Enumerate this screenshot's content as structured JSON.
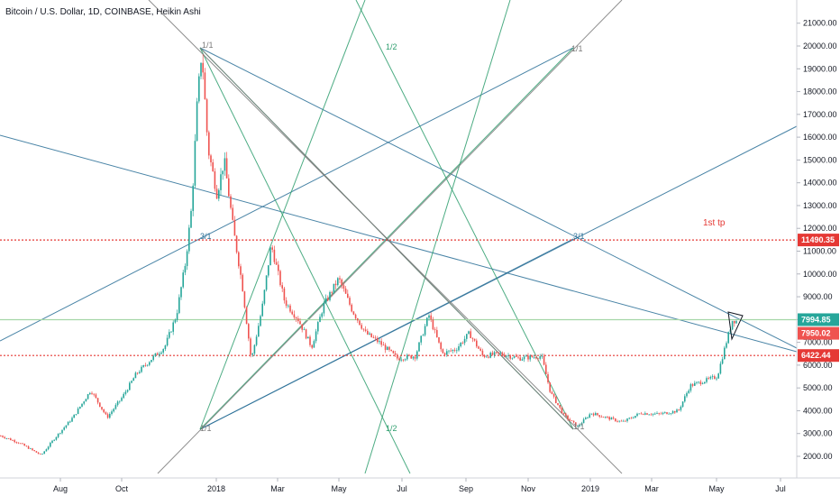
{
  "chart_data": {
    "type": "candlestick",
    "title": "Bitcoin / U.S. Dollar, 1D, COINBASE, Heikin Ashi",
    "x_ticks": [
      "Aug",
      "Oct",
      "2018",
      "Mar",
      "May",
      "Jul",
      "Sep",
      "Nov",
      "2019",
      "Mar",
      "May",
      "Jul"
    ],
    "y_ticks": [
      "21000.00",
      "20000.00",
      "19000.00",
      "18000.00",
      "17000.00",
      "16000.00",
      "15000.00",
      "14000.00",
      "13000.00",
      "12000.00",
      "11000.00",
      "10000.00",
      "9000.00",
      "8000.00",
      "7000.00",
      "6000.00",
      "5000.00",
      "4000.00",
      "3000.00",
      "2000.00"
    ],
    "ylim": [
      1500,
      21500
    ],
    "price_tags": [
      {
        "label": "11490.35",
        "value": 11490.35,
        "color": "#e53935"
      },
      {
        "label": "7994.85",
        "value": 7994.85,
        "color": "#26a69a"
      },
      {
        "label": "7950.02",
        "value": 7950.02,
        "color": "#ef5350"
      },
      {
        "label": "6422.44",
        "value": 6422.44,
        "color": "#e53935"
      }
    ],
    "horizontal_lines": [
      {
        "value": 11490.35,
        "style": "dotted",
        "color": "#e53935"
      },
      {
        "value": 6422.44,
        "style": "dotted",
        "color": "#e53935"
      },
      {
        "value": 7994.85,
        "style": "solid",
        "color": "#a5d6a7"
      }
    ],
    "annotations": [
      "1st tp"
    ],
    "gann_labels": [
      {
        "text": "1/1",
        "color": "gray"
      },
      {
        "text": "1/2",
        "color": "green"
      },
      {
        "text": "1/1",
        "color": "gray"
      },
      {
        "text": "3/1",
        "color": "blue"
      },
      {
        "text": "3/1",
        "color": "blue"
      },
      {
        "text": "1/1",
        "color": "gray"
      },
      {
        "text": "1/2",
        "color": "green"
      },
      {
        "text": "1/1",
        "color": "gray"
      }
    ],
    "colors": {
      "up": "#26a69a",
      "down": "#ef5350",
      "gann_blue": "#2a6f97",
      "gann_green": "#2e9e6e",
      "gann_gray": "#7b7b7b"
    },
    "path_points": [
      [
        0,
        2900
      ],
      [
        20,
        2600
      ],
      [
        45,
        2050
      ],
      [
        60,
        2800
      ],
      [
        80,
        3700
      ],
      [
        100,
        4900
      ],
      [
        118,
        3700
      ],
      [
        135,
        4600
      ],
      [
        150,
        5600
      ],
      [
        168,
        6300
      ],
      [
        182,
        6800
      ],
      [
        195,
        8200
      ],
      [
        205,
        10500
      ],
      [
        212,
        13000
      ],
      [
        218,
        17500
      ],
      [
        223,
        19800
      ],
      [
        230,
        15500
      ],
      [
        240,
        13500
      ],
      [
        248,
        15000
      ],
      [
        258,
        12000
      ],
      [
        268,
        9500
      ],
      [
        278,
        6200
      ],
      [
        290,
        8500
      ],
      [
        300,
        11300
      ],
      [
        315,
        8800
      ],
      [
        330,
        8000
      ],
      [
        345,
        6800
      ],
      [
        358,
        8600
      ],
      [
        375,
        9800
      ],
      [
        390,
        8400
      ],
      [
        405,
        7400
      ],
      [
        420,
        7000
      ],
      [
        440,
        6300
      ],
      [
        460,
        6400
      ],
      [
        475,
        8200
      ],
      [
        490,
        6500
      ],
      [
        505,
        6700
      ],
      [
        520,
        7400
      ],
      [
        535,
        6400
      ],
      [
        555,
        6500
      ],
      [
        575,
        6300
      ],
      [
        600,
        6400
      ],
      [
        610,
        4800
      ],
      [
        625,
        3800
      ],
      [
        640,
        3300
      ],
      [
        655,
        3900
      ],
      [
        672,
        3700
      ],
      [
        690,
        3500
      ],
      [
        710,
        3900
      ],
      [
        730,
        3850
      ],
      [
        752,
        4000
      ],
      [
        765,
        5100
      ],
      [
        780,
        5300
      ],
      [
        795,
        5500
      ],
      [
        805,
        7000
      ],
      [
        812,
        8000
      ],
      [
        818,
        7900
      ]
    ],
    "grid": false
  }
}
